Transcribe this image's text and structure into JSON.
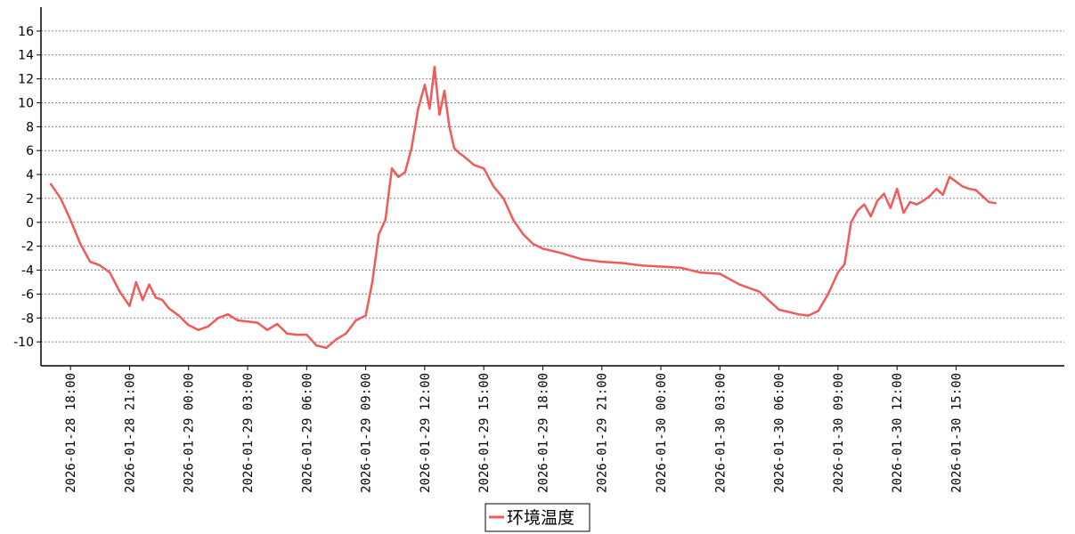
{
  "chart_data": {
    "type": "line",
    "title": "",
    "xlabel": "",
    "ylabel": "",
    "ylim": [
      -12,
      18
    ],
    "yticks": [
      -10,
      -8,
      -6,
      -4,
      -2,
      0,
      2,
      4,
      6,
      8,
      10,
      12,
      14,
      16
    ],
    "xlim": [
      "2026-01-28 16:30",
      "2026-01-30 20:30"
    ],
    "xticks": [
      "2026-01-28 18:00",
      "2026-01-28 21:00",
      "2026-01-29 00:00",
      "2026-01-29 03:00",
      "2026-01-29 06:00",
      "2026-01-29 09:00",
      "2026-01-29 12:00",
      "2026-01-29 15:00",
      "2026-01-29 18:00",
      "2026-01-29 21:00",
      "2026-01-30 00:00",
      "2026-01-30 03:00",
      "2026-01-30 06:00",
      "2026-01-30 09:00",
      "2026-01-30 12:00",
      "2026-01-30 15:00"
    ],
    "grid": "horizontal dotted",
    "legend_position": "bottom-center",
    "series": [
      {
        "name": "环境温度",
        "color": "#f25a5a",
        "x": [
          "2026-01-28 17:00",
          "2026-01-28 17:30",
          "2026-01-28 18:00",
          "2026-01-28 18:30",
          "2026-01-28 19:00",
          "2026-01-28 19:30",
          "2026-01-28 20:00",
          "2026-01-28 20:30",
          "2026-01-28 21:00",
          "2026-01-28 21:20",
          "2026-01-28 21:40",
          "2026-01-28 22:00",
          "2026-01-28 22:20",
          "2026-01-28 22:40",
          "2026-01-28 23:00",
          "2026-01-28 23:30",
          "2026-01-29 00:00",
          "2026-01-29 00:30",
          "2026-01-29 01:00",
          "2026-01-29 01:30",
          "2026-01-29 02:00",
          "2026-01-29 02:30",
          "2026-01-29 03:00",
          "2026-01-29 03:30",
          "2026-01-29 04:00",
          "2026-01-29 04:30",
          "2026-01-29 05:00",
          "2026-01-29 05:30",
          "2026-01-29 06:00",
          "2026-01-29 06:30",
          "2026-01-29 07:00",
          "2026-01-29 07:30",
          "2026-01-29 08:00",
          "2026-01-29 08:30",
          "2026-01-29 09:00",
          "2026-01-29 09:20",
          "2026-01-29 09:40",
          "2026-01-29 10:00",
          "2026-01-29 10:20",
          "2026-01-29 10:40",
          "2026-01-29 11:00",
          "2026-01-29 11:20",
          "2026-01-29 11:40",
          "2026-01-29 12:00",
          "2026-01-29 12:15",
          "2026-01-29 12:30",
          "2026-01-29 12:45",
          "2026-01-29 13:00",
          "2026-01-29 13:15",
          "2026-01-29 13:30",
          "2026-01-29 13:45",
          "2026-01-29 14:00",
          "2026-01-29 14:30",
          "2026-01-29 15:00",
          "2026-01-29 15:30",
          "2026-01-29 16:00",
          "2026-01-29 16:30",
          "2026-01-29 17:00",
          "2026-01-29 17:30",
          "2026-01-29 18:00",
          "2026-01-29 19:00",
          "2026-01-29 20:00",
          "2026-01-29 21:00",
          "2026-01-29 22:00",
          "2026-01-29 23:00",
          "2026-01-30 00:00",
          "2026-01-30 01:00",
          "2026-01-30 02:00",
          "2026-01-30 03:00",
          "2026-01-30 04:00",
          "2026-01-30 05:00",
          "2026-01-30 06:00",
          "2026-01-30 07:00",
          "2026-01-30 07:30",
          "2026-01-30 08:00",
          "2026-01-30 08:30",
          "2026-01-30 09:00",
          "2026-01-30 09:20",
          "2026-01-30 09:40",
          "2026-01-30 10:00",
          "2026-01-30 10:20",
          "2026-01-30 10:40",
          "2026-01-30 11:00",
          "2026-01-30 11:20",
          "2026-01-30 11:40",
          "2026-01-30 12:00",
          "2026-01-30 12:20",
          "2026-01-30 12:40",
          "2026-01-30 13:00",
          "2026-01-30 13:20",
          "2026-01-30 13:40",
          "2026-01-30 14:00",
          "2026-01-30 14:20",
          "2026-01-30 14:40",
          "2026-01-30 15:00",
          "2026-01-30 15:20",
          "2026-01-30 15:40",
          "2026-01-30 16:00",
          "2026-01-30 16:20",
          "2026-01-30 16:40",
          "2026-01-30 17:00"
        ],
        "values": [
          3.2,
          2.0,
          0.2,
          -1.8,
          -3.3,
          -3.6,
          -4.2,
          -5.8,
          -7.0,
          -5.0,
          -6.5,
          -5.2,
          -6.3,
          -6.5,
          -7.2,
          -7.8,
          -8.6,
          -9.0,
          -8.7,
          -8.0,
          -7.7,
          -8.2,
          -8.3,
          -8.4,
          -9.0,
          -8.5,
          -9.3,
          -9.4,
          -9.4,
          -10.3,
          -10.5,
          -9.8,
          -9.3,
          -8.2,
          -7.8,
          -5.0,
          -1.0,
          0.2,
          4.5,
          3.8,
          4.2,
          6.2,
          9.5,
          11.5,
          9.5,
          13.0,
          9.0,
          11.0,
          8.0,
          6.2,
          5.8,
          5.5,
          4.8,
          4.5,
          3.0,
          2.0,
          0.2,
          -1.0,
          -1.8,
          -2.2,
          -2.6,
          -3.1,
          -3.3,
          -3.4,
          -3.6,
          -3.7,
          -3.8,
          -4.2,
          -4.3,
          -5.2,
          -5.8,
          -7.3,
          -7.7,
          -7.8,
          -7.4,
          -6.0,
          -4.2,
          -3.5,
          0.0,
          1.0,
          1.5,
          0.5,
          1.8,
          2.4,
          1.2,
          2.8,
          0.8,
          1.7,
          1.5,
          1.8,
          2.2,
          2.8,
          2.3,
          3.8,
          3.4,
          3.0,
          2.8,
          2.7,
          2.2,
          1.7,
          1.6
        ]
      }
    ]
  }
}
